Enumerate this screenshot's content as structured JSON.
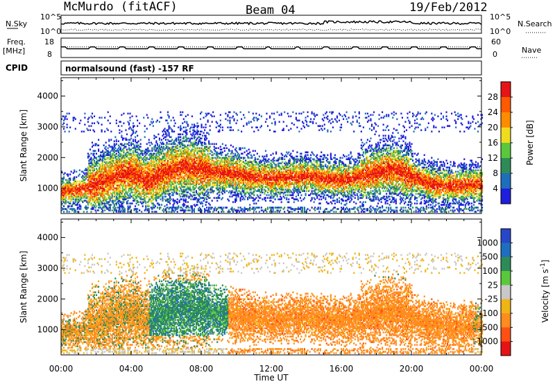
{
  "header": {
    "station": "McMurdo (fitACF)",
    "beam": "Beam 04",
    "date": "19/Feb/2012"
  },
  "top_panels": {
    "nsky_label": "N.Sky",
    "nsky_ticks": [
      "10^5",
      "10^0"
    ],
    "nsearch_label": "N.Search",
    "nsearch_ticks": [
      "10^5",
      "10^0"
    ],
    "freq_label_1": "Freq.",
    "freq_label_2": "[MHz]",
    "freq_ticks": [
      "18",
      "8"
    ],
    "nave_label": "Nave",
    "nave_ticks": [
      "60",
      "0"
    ],
    "cpid_label": "CPID",
    "cpid_text": "normalsound (fast) -157 RF"
  },
  "chart_data": [
    {
      "type": "heatmap",
      "name": "power",
      "ylabel": "Slant Range [km]",
      "yticks": [
        "1000",
        "2000",
        "3000",
        "4000"
      ],
      "ylim": [
        180,
        4600
      ],
      "xlim": [
        0,
        24
      ],
      "colorbar_label": "Power [dB]",
      "colorbar_ticks": [
        "4",
        "8",
        "12",
        "16",
        "20",
        "24",
        "28"
      ],
      "colors": [
        "#1e1edc",
        "#1e6ebe",
        "#2e8b57",
        "#5ac83c",
        "#f0dc1e",
        "#ff8c00",
        "#ff5a00",
        "#e61414"
      ]
    },
    {
      "type": "heatmap",
      "name": "velocity",
      "ylabel": "Slant Range [km]",
      "yticks": [
        "1000",
        "2000",
        "3000",
        "4000"
      ],
      "ylim": [
        180,
        4600
      ],
      "xlim": [
        0,
        24
      ],
      "xlabel": "Time UT",
      "xticks": [
        "00:00",
        "04:00",
        "08:00",
        "12:00",
        "16:00",
        "20:00",
        "00:00"
      ],
      "colorbar_label": "Velocity [m s^-1]",
      "colorbar_ticks": [
        "1000",
        "500",
        "100",
        "25",
        "-25",
        "-100",
        "-500",
        "-1000"
      ],
      "colors": [
        "#2846c8",
        "#1e6ebe",
        "#2e8b57",
        "#5ac83c",
        "#c8c8c8",
        "#f0b414",
        "#ff8c1e",
        "#ff5014",
        "#e61414"
      ]
    }
  ]
}
